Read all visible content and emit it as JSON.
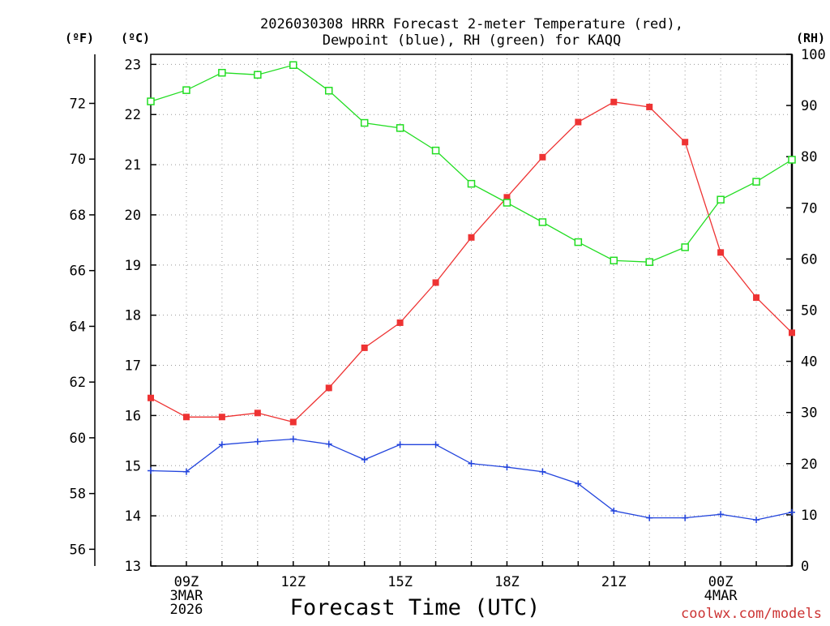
{
  "chart_data": {
    "type": "line",
    "title_line1": "2026030308 HRRR Forecast 2-meter Temperature (red),",
    "title_line2": "Dewpoint (blue), RH (green) for KAQQ",
    "xlabel": "Forecast Time (UTC)",
    "watermark": "coolwx.com/models",
    "unit_labels": {
      "f": "(ºF)",
      "c": "(ºC)",
      "rh": "(RH)"
    },
    "x_hours": [
      8,
      9,
      10,
      11,
      12,
      13,
      14,
      15,
      16,
      17,
      18,
      19,
      20,
      21,
      22,
      23,
      24,
      25,
      26
    ],
    "x_ticks": [
      {
        "hour": 9,
        "lines": [
          "09Z",
          "3MAR",
          "2026"
        ]
      },
      {
        "hour": 12,
        "lines": [
          "12Z"
        ]
      },
      {
        "hour": 15,
        "lines": [
          "15Z"
        ]
      },
      {
        "hour": 18,
        "lines": [
          "18Z"
        ]
      },
      {
        "hour": 21,
        "lines": [
          "21Z"
        ]
      },
      {
        "hour": 24,
        "lines": [
          "00Z",
          "4MAR"
        ]
      }
    ],
    "xlim": [
      8,
      26
    ],
    "celsius_axis": {
      "ylim": [
        13,
        23.2
      ],
      "ticks": [
        13,
        14,
        15,
        16,
        17,
        18,
        19,
        20,
        21,
        22,
        23
      ]
    },
    "fahrenheit_axis": {
      "ticks": [
        56,
        58,
        60,
        62,
        64,
        66,
        68,
        70,
        72
      ]
    },
    "rh_axis": {
      "ylim": [
        0,
        100
      ],
      "ticks": [
        0,
        10,
        20,
        30,
        40,
        50,
        60,
        70,
        80,
        90,
        100
      ]
    },
    "series": [
      {
        "name": "Temperature",
        "color": "#ee3333",
        "axis": "celsius",
        "marker": "filled-square",
        "values": [
          16.35,
          15.97,
          15.97,
          16.05,
          15.87,
          16.55,
          17.35,
          17.85,
          18.65,
          19.55,
          20.35,
          21.15,
          21.85,
          22.25,
          22.15,
          21.45,
          19.25,
          18.35,
          17.65
        ]
      },
      {
        "name": "Dewpoint",
        "color": "#2244dd",
        "axis": "celsius",
        "marker": "plus",
        "values": [
          14.9,
          14.88,
          15.42,
          15.48,
          15.53,
          15.43,
          15.12,
          15.42,
          15.42,
          15.04,
          14.97,
          14.88,
          14.64,
          14.1,
          13.96,
          13.96,
          14.03,
          13.92,
          14.07
        ]
      },
      {
        "name": "RH",
        "color": "#22dd22",
        "axis": "rh",
        "marker": "open-square",
        "values": [
          90.8,
          93.0,
          96.4,
          96.0,
          97.9,
          92.9,
          86.6,
          85.6,
          81.2,
          74.7,
          71.0,
          67.2,
          63.3,
          59.7,
          59.4,
          62.3,
          71.6,
          75.1,
          79.4
        ]
      }
    ]
  }
}
